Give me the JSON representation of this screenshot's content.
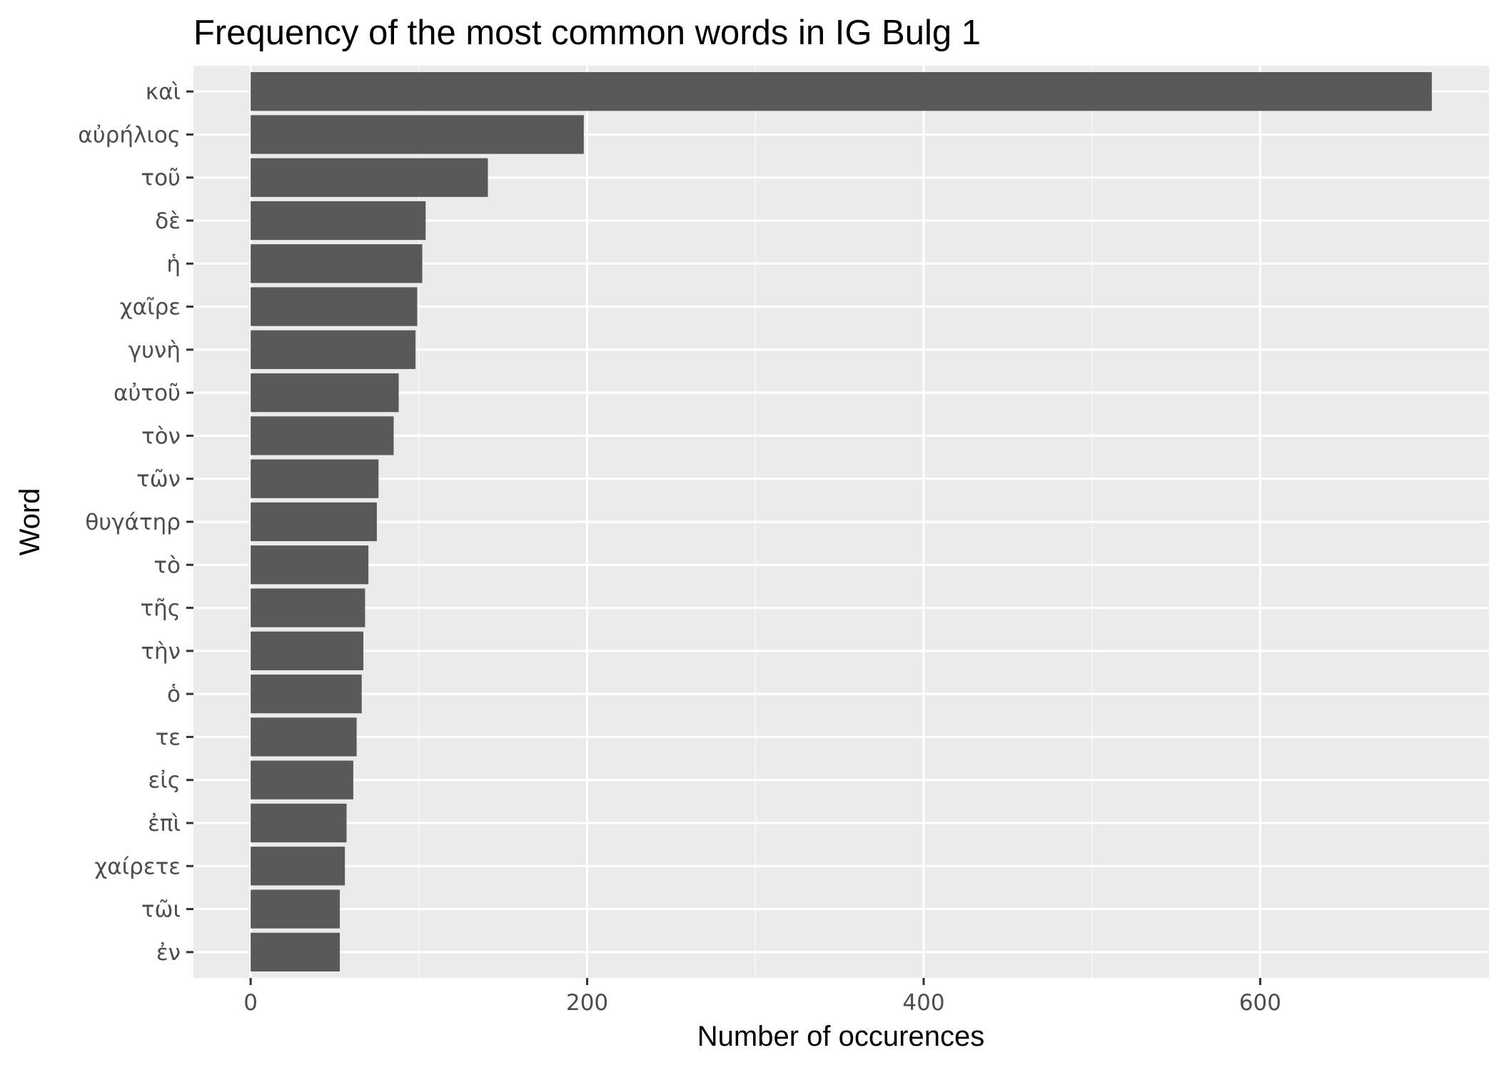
{
  "chart_data": {
    "type": "bar",
    "orientation": "horizontal",
    "title": "Frequency of the most common words in IG Bulg 1",
    "xlabel": "Number of occurences",
    "ylabel": "Word",
    "xlim": [
      -34,
      736
    ],
    "x_ticks": [
      0,
      200,
      400,
      600
    ],
    "x_tick_labels": [
      "0",
      "200",
      "400",
      "600"
    ],
    "grid": true,
    "legend": "none",
    "categories": [
      "καὶ",
      "αὐρήλιος",
      "τοῦ",
      "δὲ",
      "ἡ",
      "χαῖρε",
      "γυνὴ",
      "αὐτοῦ",
      "τὸν",
      "τῶν",
      "θυγάτηρ",
      "τὸ",
      "τῆς",
      "τὴν",
      "ὁ",
      "τε",
      "εἰς",
      "ἐπὶ",
      "χαίρετε",
      "τῶι",
      "ἐν"
    ],
    "values": [
      702,
      198,
      141,
      104,
      102,
      99,
      98,
      88,
      85,
      76,
      75,
      70,
      68,
      67,
      66,
      63,
      61,
      57,
      56,
      53,
      53
    ],
    "colors": {
      "bar": "#595959",
      "panel": "#ebebeb",
      "grid_major": "#ffffff",
      "grid_minor": "#f5f5f5",
      "tick_text": "#4d4d4d",
      "tick_mark": "#333333",
      "text": "#000000"
    }
  }
}
